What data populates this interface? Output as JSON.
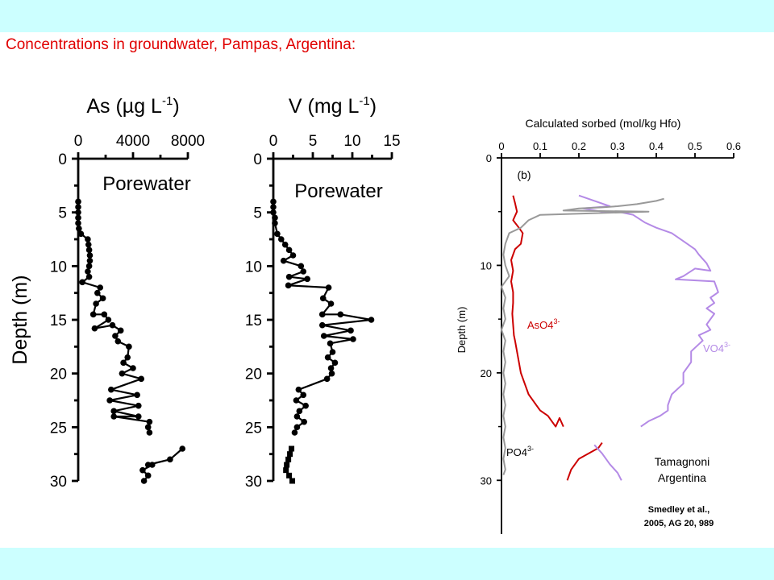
{
  "slide": {
    "title": "Concentrations in groundwater, Pampas, Argentina:"
  },
  "chart_data": [
    {
      "id": "as",
      "type": "line",
      "xlabel": "As (µg L",
      "xlabel_sup": "-1",
      "xlabel_close": ")",
      "ylabel": "Depth (m)",
      "annotation": "Porewater",
      "xlim": [
        0,
        8000
      ],
      "ylim": [
        0,
        30
      ],
      "y_inverted": true,
      "x_ticks": [
        0,
        4000,
        8000
      ],
      "y_ticks": [
        0,
        5,
        10,
        15,
        20,
        25,
        30
      ],
      "series": [
        {
          "color": "#000000",
          "marker": "circle",
          "points": [
            [
              0,
              4
            ],
            [
              0,
              4.5
            ],
            [
              0,
              5
            ],
            [
              0,
              5.5
            ],
            [
              0,
              6
            ],
            [
              50,
              6.5
            ],
            [
              200,
              7
            ],
            [
              700,
              7.5
            ],
            [
              750,
              8
            ],
            [
              800,
              8.5
            ],
            [
              850,
              9
            ],
            [
              850,
              9.5
            ],
            [
              800,
              10
            ],
            [
              700,
              10.5
            ],
            [
              800,
              11
            ],
            [
              300,
              11.5
            ],
            [
              1600,
              12
            ],
            [
              1400,
              12.5
            ],
            [
              1800,
              13
            ],
            [
              1300,
              13.5
            ],
            [
              1100,
              14.5
            ],
            [
              1900,
              14.5
            ],
            [
              2200,
              15
            ],
            [
              1200,
              15.8
            ],
            [
              2500,
              15.5
            ],
            [
              3100,
              16
            ],
            [
              2700,
              16.5
            ],
            [
              2900,
              17
            ],
            [
              3700,
              17.5
            ],
            [
              3600,
              18.5
            ],
            [
              3300,
              19
            ],
            [
              4000,
              19.5
            ],
            [
              3200,
              20
            ],
            [
              4600,
              20.5
            ],
            [
              2400,
              21.5
            ],
            [
              4300,
              22
            ],
            [
              2300,
              22.5
            ],
            [
              4400,
              23
            ],
            [
              2600,
              23.5
            ],
            [
              4400,
              24
            ],
            [
              2600,
              24
            ],
            [
              5200,
              24.5
            ],
            [
              5100,
              25
            ],
            [
              5200,
              25.5
            ]
          ]
        },
        {
          "color": "#000000",
          "marker": "circle",
          "points": [
            [
              7600,
              27
            ],
            [
              6700,
              28
            ],
            [
              5100,
              28.5
            ],
            [
              5400,
              28.5
            ],
            [
              4700,
              29
            ],
            [
              5100,
              29.5
            ],
            [
              4800,
              30
            ]
          ]
        }
      ]
    },
    {
      "id": "v",
      "type": "line",
      "xlabel": "V (mg L",
      "xlabel_sup": "-1",
      "xlabel_close": ")",
      "annotation": "Porewater",
      "xlim": [
        0,
        15
      ],
      "ylim": [
        0,
        30
      ],
      "y_inverted": true,
      "x_ticks": [
        0,
        5,
        10,
        15
      ],
      "y_ticks": [
        0,
        5,
        10,
        15,
        20,
        25,
        30
      ],
      "series": [
        {
          "color": "#000000",
          "marker": "circle",
          "points": [
            [
              0,
              4
            ],
            [
              0,
              4.5
            ],
            [
              0,
              5
            ],
            [
              0.2,
              5.5
            ],
            [
              0.2,
              6
            ],
            [
              0.5,
              7
            ],
            [
              1,
              7.5
            ],
            [
              1.5,
              8
            ],
            [
              2,
              8.5
            ],
            [
              2.5,
              9
            ],
            [
              1.3,
              9.5
            ],
            [
              3.5,
              10
            ],
            [
              3.8,
              10.5
            ],
            [
              2,
              11
            ],
            [
              4.3,
              11.2
            ],
            [
              1.9,
              11.8
            ],
            [
              7,
              12
            ],
            [
              6.3,
              13
            ],
            [
              7.3,
              13.5
            ],
            [
              6.2,
              14.5
            ],
            [
              8.5,
              14.5
            ],
            [
              12.4,
              15
            ],
            [
              6.2,
              15.5
            ],
            [
              9.8,
              16
            ],
            [
              6.4,
              16.5
            ],
            [
              10.1,
              16.8
            ],
            [
              7.2,
              17.2
            ],
            [
              7.5,
              18
            ],
            [
              6.9,
              18.5
            ],
            [
              7.8,
              19
            ],
            [
              7.3,
              19.5
            ],
            [
              7.4,
              20
            ],
            [
              6.8,
              20.5
            ],
            [
              3.2,
              21.5
            ],
            [
              3.8,
              22
            ],
            [
              2.9,
              22.5
            ],
            [
              4.1,
              23
            ],
            [
              3.3,
              23.5
            ],
            [
              3,
              24
            ],
            [
              3.9,
              24.5
            ],
            [
              3,
              25
            ],
            [
              2.7,
              25.5
            ]
          ]
        },
        {
          "color": "#000000",
          "marker": "square",
          "points": [
            [
              2.3,
              27
            ],
            [
              2.1,
              27.5
            ],
            [
              1.9,
              28
            ],
            [
              1.7,
              28.5
            ],
            [
              1.6,
              29
            ],
            [
              2,
              29.5
            ],
            [
              2.4,
              30
            ]
          ]
        }
      ]
    },
    {
      "id": "sorbed",
      "type": "line",
      "title": "Calculated sorbed (mol/kg Hfo)",
      "ylabel": "Depth (m)",
      "panel_label": "(b)",
      "xlim": [
        0,
        0.6
      ],
      "ylim": [
        0,
        35
      ],
      "y_inverted": true,
      "x_ticks": [
        0,
        0.1,
        0.2,
        0.3,
        0.4,
        0.5,
        0.6
      ],
      "y_ticks": [
        0,
        10,
        20,
        30
      ],
      "series": [
        {
          "name": "AsO4",
          "label_sup": "3-",
          "color": "#cc0000",
          "points": [
            [
              0.03,
              3.5
            ],
            [
              0.035,
              4.2
            ],
            [
              0.04,
              5
            ],
            [
              0.03,
              5.8
            ],
            [
              0.045,
              6.5
            ],
            [
              0.055,
              7
            ],
            [
              0.05,
              8
            ],
            [
              0.035,
              8.5
            ],
            [
              0.025,
              9.5
            ],
            [
              0.03,
              10.5
            ],
            [
              0.025,
              11.5
            ],
            [
              0.03,
              12.5
            ],
            [
              0.03,
              13.5
            ],
            [
              0.028,
              14.5
            ],
            [
              0.03,
              15.5
            ],
            [
              0.032,
              16.5
            ],
            [
              0.035,
              17
            ],
            [
              0.04,
              18
            ],
            [
              0.045,
              19
            ],
            [
              0.05,
              20
            ],
            [
              0.06,
              21
            ],
            [
              0.07,
              22
            ],
            [
              0.09,
              23
            ],
            [
              0.1,
              23.5
            ],
            [
              0.12,
              24
            ],
            [
              0.13,
              24.5
            ],
            [
              0.14,
              25
            ],
            [
              0.15,
              24.2
            ],
            [
              0.16,
              25
            ]
          ]
        },
        {
          "name": "VO4",
          "label_sup": "3-",
          "color": "#b48ae6",
          "points": [
            [
              0.2,
              3.5
            ],
            [
              0.28,
              4.5
            ],
            [
              0.21,
              4.7
            ],
            [
              0.26,
              5
            ],
            [
              0.3,
              5
            ],
            [
              0.34,
              5.3
            ],
            [
              0.37,
              6
            ],
            [
              0.4,
              6.5
            ],
            [
              0.44,
              7
            ],
            [
              0.48,
              8
            ],
            [
              0.5,
              8.5
            ],
            [
              0.51,
              9
            ],
            [
              0.53,
              9.8
            ],
            [
              0.54,
              10.5
            ],
            [
              0.5,
              10.3
            ],
            [
              0.47,
              11
            ],
            [
              0.45,
              11.3
            ],
            [
              0.55,
              11.5
            ],
            [
              0.56,
              12.5
            ],
            [
              0.54,
              13
            ],
            [
              0.55,
              13.5
            ],
            [
              0.53,
              14
            ],
            [
              0.55,
              14.5
            ],
            [
              0.53,
              15.5
            ],
            [
              0.54,
              16
            ],
            [
              0.51,
              16.5
            ],
            [
              0.52,
              17
            ],
            [
              0.49,
              18
            ],
            [
              0.49,
              19
            ],
            [
              0.47,
              20
            ],
            [
              0.47,
              21
            ],
            [
              0.44,
              22
            ],
            [
              0.43,
              23
            ],
            [
              0.43,
              23.5
            ],
            [
              0.41,
              24
            ],
            [
              0.38,
              24.5
            ],
            [
              0.36,
              25
            ]
          ]
        },
        {
          "name": "PO4",
          "label_sup": "3-",
          "color": "#999999",
          "points": [
            [
              0.42,
              3.8
            ],
            [
              0.4,
              4
            ],
            [
              0.35,
              4.3
            ],
            [
              0.3,
              4.5
            ],
            [
              0.26,
              4.6
            ],
            [
              0.2,
              4.7
            ],
            [
              0.16,
              4.9
            ],
            [
              0.38,
              5
            ],
            [
              0.1,
              5.3
            ],
            [
              0.07,
              5.8
            ],
            [
              0.05,
              6.5
            ],
            [
              0.02,
              7
            ],
            [
              0.01,
              8
            ],
            [
              0.005,
              9
            ],
            [
              0.01,
              10
            ],
            [
              0.02,
              11
            ],
            [
              0,
              12
            ],
            [
              0.01,
              13
            ],
            [
              0.005,
              14
            ],
            [
              0.01,
              15
            ],
            [
              0,
              16
            ],
            [
              0.01,
              17
            ],
            [
              0.005,
              18
            ],
            [
              0.01,
              19
            ],
            [
              0.005,
              20
            ],
            [
              0.01,
              21
            ],
            [
              0.005,
              22
            ],
            [
              0.01,
              23
            ],
            [
              0.005,
              24
            ],
            [
              0.01,
              25
            ],
            [
              0.005,
              26
            ],
            [
              0.01,
              27
            ],
            [
              0.005,
              28
            ],
            [
              0.01,
              29
            ],
            [
              0.005,
              29.5
            ]
          ]
        },
        {
          "name": "AsO4 (lower)",
          "color": "#cc0000",
          "points": [
            [
              0.26,
              26.5
            ],
            [
              0.25,
              27
            ],
            [
              0.2,
              28
            ],
            [
              0.18,
              29
            ],
            [
              0.17,
              30
            ]
          ]
        },
        {
          "name": "VO4 (lower)",
          "color": "#b48ae6",
          "points": [
            [
              0.24,
              26.7
            ],
            [
              0.26,
              27.5
            ],
            [
              0.28,
              28.5
            ],
            [
              0.3,
              29.3
            ],
            [
              0.31,
              30
            ]
          ]
        }
      ],
      "annotations": {
        "site_line1": "Tamagnoni",
        "site_line2": "Argentina",
        "citation_line1": "Smedley et al.,",
        "citation_line2": "2005, AG 20, 989"
      }
    }
  ]
}
